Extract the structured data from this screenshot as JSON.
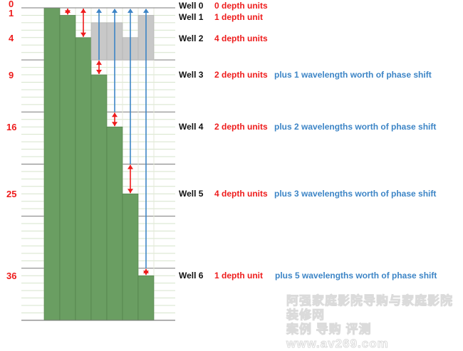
{
  "axis_labels": [
    "0",
    "1",
    "4",
    "9",
    "16",
    "25",
    "36"
  ],
  "wells": [
    {
      "name": "Well 0",
      "depth": 0,
      "red": "0 depth units",
      "blue": "",
      "arrow_from": 0,
      "arrow_to": 0,
      "blue_arrow": false
    },
    {
      "name": "Well 1",
      "depth": 1,
      "red": "1 depth unit",
      "blue": "",
      "arrow_from": 0,
      "arrow_to": 1,
      "blue_arrow": false
    },
    {
      "name": "Well 2",
      "depth": 4,
      "red": "4 depth units",
      "blue": "",
      "arrow_from": 0,
      "arrow_to": 4,
      "blue_arrow": false
    },
    {
      "name": "Well 3",
      "depth": 9,
      "red": "2 depth units",
      "blue": "plus 1 wavelength worth of phase shift",
      "arrow_from": 7,
      "arrow_to": 9,
      "blue_arrow": true,
      "gray_top": 2
    },
    {
      "name": "Well 4",
      "depth": 16,
      "red": "2 depth units",
      "blue": "plus 2 wavelengths worth of phase shift",
      "arrow_from": 14,
      "arrow_to": 16,
      "blue_arrow": true,
      "gray_top": 2
    },
    {
      "name": "Well 5",
      "depth": 25,
      "red": "4 depth units",
      "blue": "plus 3 wavelengths worth of phase shift",
      "arrow_from": 21,
      "arrow_to": 25,
      "blue_arrow": true,
      "gray_top": 4
    },
    {
      "name": "Well 6",
      "depth": 36,
      "red": "1 depth unit",
      "blue": "plus 5 wavelengths worth of phase shift",
      "arrow_from": 35,
      "arrow_to": 36,
      "blue_arrow": true,
      "gray_top": 1
    }
  ],
  "wavelength_depth_units": 7,
  "max_depth": 42,
  "colors": {
    "green": "#6a9e62",
    "green_edge": "#4f7f48",
    "gray": "#c8c8c8",
    "red": "#ee1c1c",
    "blue": "#3d85c6"
  },
  "watermark": [
    "阿强家庭影院导购与家庭影院装修网",
    "案例 导购 评测  www.av269.com"
  ]
}
